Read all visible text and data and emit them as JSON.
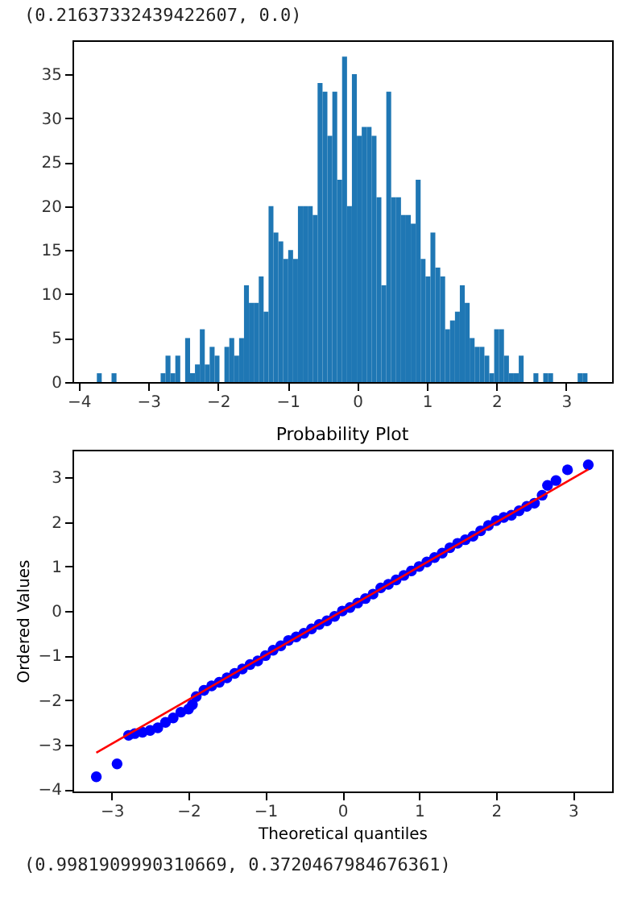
{
  "chart_data": [
    {
      "type": "histogram",
      "annotations": [
        "(0.21637332439422607, 0.0)"
      ],
      "color": "#1f77b4",
      "bins": [
        -3.74,
        -3.67,
        -3.599,
        -3.529,
        -3.458,
        -3.388,
        -3.317,
        -3.247,
        -3.176,
        -3.106,
        -3.036,
        -2.965,
        -2.895,
        -2.824,
        -2.754,
        -2.683,
        -2.613,
        -2.542,
        -2.472,
        -2.401,
        -2.331,
        -2.261,
        -2.19,
        -2.12,
        -2.049,
        -1.979,
        -1.908,
        -1.838,
        -1.767,
        -1.697,
        -1.627,
        -1.556,
        -1.486,
        -1.415,
        -1.345,
        -1.274,
        -1.204,
        -1.133,
        -1.063,
        -0.992,
        -0.922,
        -0.852,
        -0.781,
        -0.711,
        -0.64,
        -0.57,
        -0.499,
        -0.429,
        -0.358,
        -0.288,
        -0.218,
        -0.147,
        -0.077,
        -0.006,
        0.064,
        0.135,
        0.205,
        0.276,
        0.346,
        0.417,
        0.487,
        0.557,
        0.628,
        0.698,
        0.769,
        0.839,
        0.91,
        0.98,
        1.051,
        1.121,
        1.192,
        1.262,
        1.332,
        1.403,
        1.473,
        1.544,
        1.614,
        1.685,
        1.755,
        1.826,
        1.896,
        1.966,
        2.037,
        2.107,
        2.178,
        2.248,
        2.319,
        2.389,
        2.46,
        2.53,
        2.601,
        2.671,
        2.742,
        2.812,
        2.883,
        2.953,
        3.024,
        3.094,
        3.165,
        3.235,
        3.306
      ],
      "values": [
        1,
        0,
        0,
        1,
        0,
        0,
        0,
        0,
        0,
        0,
        0,
        0,
        0,
        1,
        3,
        1,
        3,
        0,
        5,
        1,
        2,
        6,
        2,
        4,
        3,
        0,
        4,
        5,
        3,
        5,
        11,
        9,
        9,
        12,
        8,
        20,
        17,
        16,
        14,
        15,
        14,
        20,
        20,
        20,
        19,
        34,
        33,
        28,
        33,
        23,
        37,
        20,
        35,
        28,
        29,
        29,
        28,
        21,
        11,
        33,
        21,
        21,
        19,
        19,
        18,
        23,
        14,
        12,
        17,
        13,
        12,
        6,
        7,
        8,
        11,
        9,
        5,
        4,
        4,
        3,
        1,
        6,
        6,
        3,
        1,
        1,
        3,
        0,
        0,
        1,
        0,
        1,
        1,
        0,
        0,
        0,
        0,
        0,
        1,
        1
      ],
      "xlim": [
        -4.09,
        3.66
      ],
      "xticks": [
        -4,
        -3,
        -2,
        -1,
        0,
        1,
        2,
        3
      ],
      "ylim": [
        0,
        38.85
      ],
      "yticks": [
        0,
        5,
        10,
        15,
        20,
        25,
        30,
        35
      ],
      "grid": false
    },
    {
      "type": "scatter",
      "title": "Probability Plot",
      "xlabel": "Theoretical quantiles",
      "ylabel": "Ordered Values",
      "annotations": [
        "(0.9981909990310669, 0.3720467984676361)"
      ],
      "xlim": [
        -3.51,
        3.51
      ],
      "xticks": [
        -3,
        -2,
        -1,
        0,
        1,
        2,
        3
      ],
      "ylim": [
        -4.05,
        3.62
      ],
      "yticks": [
        -4,
        -3,
        -2,
        -1,
        0,
        1,
        2,
        3
      ],
      "grid": false,
      "series": [
        {
          "color": "#0000ff",
          "marker": "circle",
          "x": [
            -3.2,
            -2.93,
            -2.78,
            -2.7,
            -2.6,
            -2.5,
            -2.4,
            -2.3,
            -2.2,
            -2.1,
            -2.0,
            -1.95,
            -1.9,
            -1.8,
            -1.7,
            -1.6,
            -1.5,
            -1.4,
            -1.3,
            -1.2,
            -1.1,
            -1.0,
            -0.9,
            -0.8,
            -0.7,
            -0.6,
            -0.5,
            -0.4,
            -0.3,
            -0.2,
            -0.1,
            0,
            0.1,
            0.2,
            0.3,
            0.4,
            0.5,
            0.6,
            0.7,
            0.8,
            0.9,
            1.0,
            1.1,
            1.2,
            1.3,
            1.4,
            1.5,
            1.6,
            1.7,
            1.8,
            1.9,
            2.0,
            2.1,
            2.2,
            2.3,
            2.4,
            2.5,
            2.6,
            2.67,
            2.78,
            2.93,
            3.2
          ],
          "values": [
            -3.72,
            -3.43,
            -2.79,
            -2.75,
            -2.72,
            -2.68,
            -2.62,
            -2.5,
            -2.4,
            -2.27,
            -2.2,
            -2.1,
            -1.92,
            -1.78,
            -1.68,
            -1.6,
            -1.5,
            -1.4,
            -1.3,
            -1.2,
            -1.12,
            -1.0,
            -0.88,
            -0.78,
            -0.66,
            -0.58,
            -0.5,
            -0.4,
            -0.3,
            -0.22,
            -0.12,
            0,
            0.08,
            0.18,
            0.28,
            0.38,
            0.52,
            0.6,
            0.7,
            0.8,
            0.9,
            1.0,
            1.1,
            1.2,
            1.3,
            1.42,
            1.52,
            1.6,
            1.68,
            1.8,
            1.92,
            2.03,
            2.1,
            2.15,
            2.25,
            2.35,
            2.42,
            2.6,
            2.82,
            2.93,
            3.17,
            3.28
          ]
        },
        {
          "type": "line",
          "marker": "none",
          "color": "#ff0000",
          "x": [
            -3.2,
            3.2
          ],
          "values": [
            -3.18,
            3.18
          ]
        }
      ]
    }
  ]
}
